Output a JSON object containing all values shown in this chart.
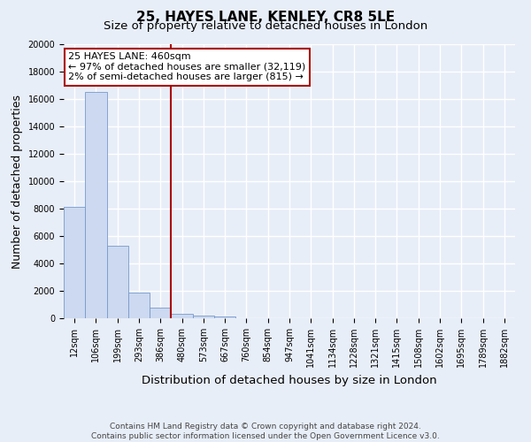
{
  "title": "25, HAYES LANE, KENLEY, CR8 5LE",
  "subtitle": "Size of property relative to detached houses in London",
  "xlabel": "Distribution of detached houses by size in London",
  "ylabel": "Number of detached properties",
  "bar_labels": [
    "12sqm",
    "106sqm",
    "199sqm",
    "293sqm",
    "386sqm",
    "480sqm",
    "573sqm",
    "667sqm",
    "760sqm",
    "854sqm",
    "947sqm",
    "1041sqm",
    "1134sqm",
    "1228sqm",
    "1321sqm",
    "1415sqm",
    "1508sqm",
    "1602sqm",
    "1695sqm",
    "1789sqm",
    "1882sqm"
  ],
  "bar_values": [
    8100,
    16500,
    5300,
    1850,
    800,
    350,
    200,
    150,
    0,
    0,
    0,
    0,
    0,
    0,
    0,
    0,
    0,
    0,
    0,
    0,
    0
  ],
  "bar_color": "#ccd9f0",
  "bar_edge_color": "#7799cc",
  "vline_x": 5.0,
  "vline_color": "#aa0000",
  "annotation_title": "25 HAYES LANE: 460sqm",
  "annotation_line1": "← 97% of detached houses are smaller (32,119)",
  "annotation_line2": "2% of semi-detached houses are larger (815) →",
  "annotation_box_facecolor": "#ffffff",
  "annotation_box_edgecolor": "#aa0000",
  "ylim": [
    0,
    20000
  ],
  "yticks": [
    0,
    2000,
    4000,
    6000,
    8000,
    10000,
    12000,
    14000,
    16000,
    18000,
    20000
  ],
  "footer_line1": "Contains HM Land Registry data © Crown copyright and database right 2024.",
  "footer_line2": "Contains public sector information licensed under the Open Government Licence v3.0.",
  "fig_bg_color": "#e8eef8",
  "plot_bg_color": "#e8eef8",
  "grid_color": "#ffffff",
  "title_fontsize": 11,
  "subtitle_fontsize": 9.5,
  "ylabel_fontsize": 9,
  "xlabel_fontsize": 9.5,
  "tick_fontsize": 7,
  "annotation_fontsize": 8,
  "footer_fontsize": 6.5
}
